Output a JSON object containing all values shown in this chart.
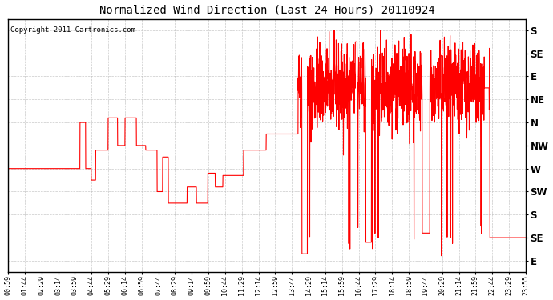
{
  "title": "Normalized Wind Direction (Last 24 Hours) 20110924",
  "copyright_text": "Copyright 2011 Cartronics.com",
  "line_color": "#ff0000",
  "background_color": "#ffffff",
  "plot_bg_color": "#ffffff",
  "grid_color": "#bbbbbb",
  "ytick_labels": [
    "S",
    "SE",
    "E",
    "NE",
    "N",
    "NW",
    "W",
    "SW",
    "S",
    "SE",
    "E"
  ],
  "ytick_values": [
    10,
    9,
    8,
    7,
    6,
    5,
    4,
    3,
    2,
    1,
    0
  ],
  "ylim": [
    -0.5,
    10.5
  ],
  "x_labels": [
    "00:59",
    "01:44",
    "02:29",
    "03:14",
    "03:59",
    "04:44",
    "05:29",
    "06:14",
    "06:59",
    "07:44",
    "08:29",
    "09:14",
    "09:59",
    "10:44",
    "11:29",
    "12:14",
    "12:59",
    "13:44",
    "14:29",
    "15:14",
    "15:59",
    "16:44",
    "17:29",
    "18:14",
    "18:59",
    "19:44",
    "20:29",
    "21:14",
    "21:59",
    "22:44",
    "23:29",
    "23:55"
  ]
}
